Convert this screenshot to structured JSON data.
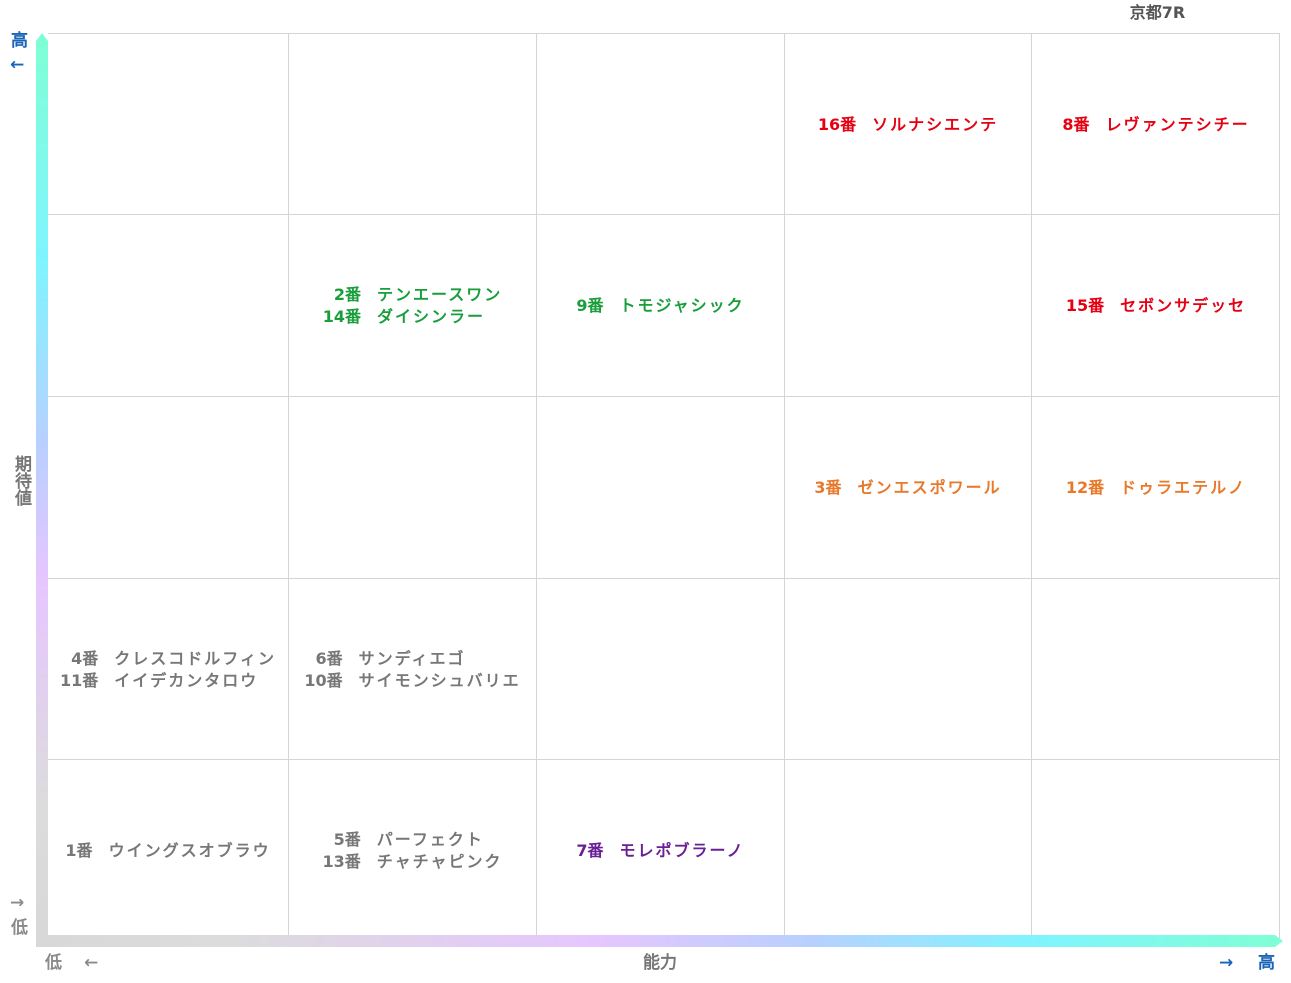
{
  "title": "京都7R",
  "axes": {
    "y_label": "期待値",
    "y_high": "高",
    "y_high_arrow": "←",
    "y_low": "低",
    "y_low_arrow": "→",
    "x_label": "能力",
    "x_low": "低",
    "x_low_arrow": "←",
    "x_high": "高",
    "x_high_arrow": "→"
  },
  "colors": {
    "red": "#e60012",
    "green": "#1a9e3c",
    "orange": "#e8792b",
    "gray": "#777777",
    "purple": "#6a1f96",
    "high": "#1a64b8",
    "low": "#8a8a8a"
  },
  "grid": [
    [
      {
        "entries": []
      },
      {
        "entries": []
      },
      {
        "entries": []
      },
      {
        "entries": [
          {
            "num": "16番",
            "name": "ソルナシエンテ",
            "color": "red"
          }
        ]
      },
      {
        "entries": [
          {
            "num": "8番",
            "name": "レヴァンテシチー",
            "color": "red"
          }
        ]
      }
    ],
    [
      {
        "entries": []
      },
      {
        "entries": [
          {
            "num": "2番",
            "name": "テンエースワン",
            "color": "green"
          },
          {
            "num": "14番",
            "name": "ダイシンラー",
            "color": "green"
          }
        ]
      },
      {
        "entries": [
          {
            "num": "9番",
            "name": "トモジャシック",
            "color": "green"
          }
        ]
      },
      {
        "entries": []
      },
      {
        "entries": [
          {
            "num": "15番",
            "name": "セボンサデッセ",
            "color": "red"
          }
        ]
      }
    ],
    [
      {
        "entries": []
      },
      {
        "entries": []
      },
      {
        "entries": []
      },
      {
        "entries": [
          {
            "num": "3番",
            "name": "ゼンエスポワール",
            "color": "orange"
          }
        ]
      },
      {
        "entries": [
          {
            "num": "12番",
            "name": "ドゥラエテルノ",
            "color": "orange"
          }
        ]
      }
    ],
    [
      {
        "entries": [
          {
            "num": "4番",
            "name": "クレスコドルフィン",
            "color": "gray"
          },
          {
            "num": "11番",
            "name": "イイデカンタロウ",
            "color": "gray"
          }
        ]
      },
      {
        "entries": [
          {
            "num": "6番",
            "name": "サンディエゴ",
            "color": "gray"
          },
          {
            "num": "10番",
            "name": "サイモンシュバリエ",
            "color": "gray"
          }
        ]
      },
      {
        "entries": []
      },
      {
        "entries": []
      },
      {
        "entries": []
      }
    ],
    [
      {
        "entries": [
          {
            "num": "1番",
            "name": "ウイングスオブラウ",
            "color": "gray"
          }
        ]
      },
      {
        "entries": [
          {
            "num": "5番",
            "name": "パーフェクト",
            "color": "gray"
          },
          {
            "num": "13番",
            "name": "チャチャピンク",
            "color": "gray"
          }
        ]
      },
      {
        "entries": [
          {
            "num": "7番",
            "name": "モレポブラーノ",
            "color": "purple"
          }
        ]
      },
      {
        "entries": []
      },
      {
        "entries": []
      }
    ]
  ]
}
